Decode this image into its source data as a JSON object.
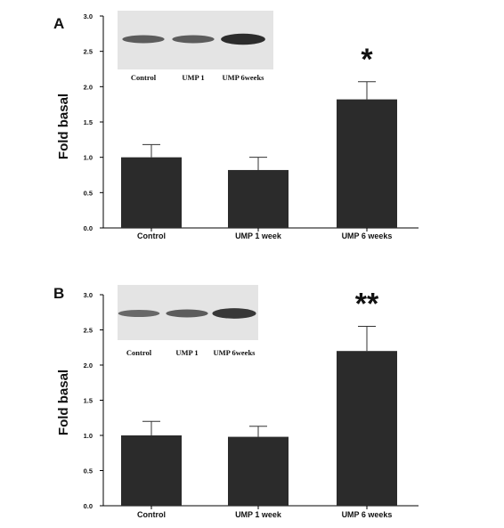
{
  "colors": {
    "bar": "#2b2b2b",
    "axis": "#000000",
    "blot_bg": "#e4e4e4",
    "band": "#1c1c1c"
  },
  "chart_data": [
    {
      "type": "bar",
      "panel": "A",
      "categories": [
        "Control",
        "UMP 1 week",
        "UMP 6 weeks"
      ],
      "values": [
        1.0,
        0.82,
        1.82
      ],
      "errors": [
        0.18,
        0.18,
        0.25
      ],
      "ylabel": "Fold basal",
      "ylim": [
        0,
        3.0
      ],
      "yticks": [
        "0.0",
        "0.5",
        "1.0",
        "1.5",
        "2.0",
        "2.5",
        "3.0"
      ],
      "significance": [
        "",
        "",
        "*"
      ],
      "blot_labels": [
        "Control",
        "UMP 1",
        "UMP 6weeks"
      ],
      "band_intensity": [
        0.55,
        0.55,
        0.95
      ]
    },
    {
      "type": "bar",
      "panel": "B",
      "categories": [
        "Control",
        "UMP 1 week",
        "UMP 6 weeks"
      ],
      "values": [
        1.0,
        0.98,
        2.2
      ],
      "errors": [
        0.2,
        0.15,
        0.35
      ],
      "ylabel": "Fold basal",
      "ylim": [
        0,
        3.0
      ],
      "yticks": [
        "0.0",
        "0.5",
        "1.0",
        "1.5",
        "2.0",
        "2.5",
        "3.0"
      ],
      "significance": [
        "",
        "",
        "**"
      ],
      "blot_labels": [
        "Control",
        "UMP 1",
        "UMP 6weeks"
      ],
      "band_intensity": [
        0.45,
        0.55,
        0.85
      ]
    }
  ]
}
